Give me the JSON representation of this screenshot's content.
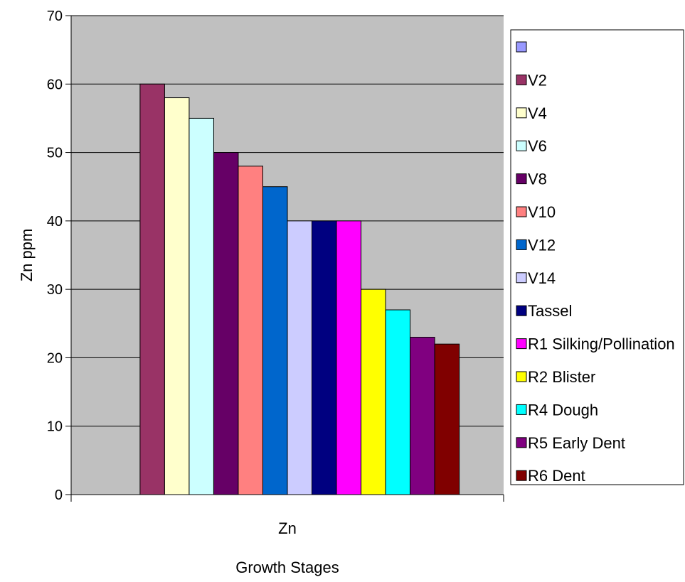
{
  "chart_data": {
    "type": "bar",
    "title": "",
    "xlabel": "Growth Stages",
    "ylabel": "Zn ppm",
    "ylim": [
      0,
      70
    ],
    "yticks": [
      0,
      10,
      20,
      30,
      40,
      50,
      60,
      70
    ],
    "grid": true,
    "legend_position": "right",
    "categories": [
      "Zn"
    ],
    "series": [
      {
        "name": "",
        "values": [
          0
        ],
        "color": "#9999ff"
      },
      {
        "name": "V2",
        "values": [
          60
        ],
        "color": "#993366"
      },
      {
        "name": "V4",
        "values": [
          58
        ],
        "color": "#ffffcc"
      },
      {
        "name": "V6",
        "values": [
          55
        ],
        "color": "#ccffff"
      },
      {
        "name": "V8",
        "values": [
          50
        ],
        "color": "#660066"
      },
      {
        "name": "V10",
        "values": [
          48
        ],
        "color": "#ff8080"
      },
      {
        "name": "V12",
        "values": [
          45
        ],
        "color": "#0066cc"
      },
      {
        "name": "V14",
        "values": [
          40
        ],
        "color": "#ccccff"
      },
      {
        "name": "Tassel",
        "values": [
          40
        ],
        "color": "#000080"
      },
      {
        "name": "R1 Silking/Pollination",
        "values": [
          40
        ],
        "color": "#ff00ff"
      },
      {
        "name": "R2 Blister",
        "values": [
          30
        ],
        "color": "#ffff00"
      },
      {
        "name": "R4 Dough",
        "values": [
          27
        ],
        "color": "#00ffff"
      },
      {
        "name": "R5 Early Dent",
        "values": [
          23
        ],
        "color": "#800080"
      },
      {
        "name": "R6 Dent",
        "values": [
          22
        ],
        "color": "#800000"
      }
    ],
    "plot_background": "#c0c0c0"
  }
}
